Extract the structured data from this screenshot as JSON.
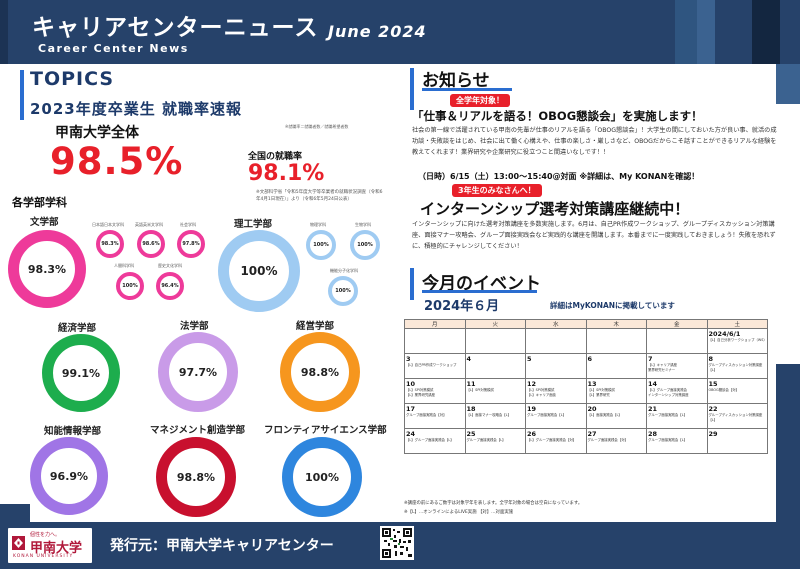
{
  "header": {
    "title": "キャリアセンターニュース",
    "subtitle": "Career Center News",
    "date": "June 2024"
  },
  "topics": {
    "label": "TOPICS",
    "year_title": "2023年度卒業生 就職率速報",
    "university_label": "甲南大学全体",
    "university_note": "※就職率＝就職者数／就職希望者数",
    "university_rate": "98.5%",
    "national_label": "全国の就職率",
    "national_rate": "98.1%",
    "national_note": "※文部科学省「令和5年度大学等卒業者の就職状況調査（令和6年4月1日現在）」より（令和6年5月24日公表）",
    "dept_heading": "各学部学科"
  },
  "faculties": [
    {
      "name": "文学部",
      "rate": "98.3%",
      "color": "#ee3a9a",
      "percent": 98.3
    },
    {
      "name": "理工学部",
      "rate": "100%",
      "color": "#9fcbf2",
      "percent": 100
    },
    {
      "name": "経済学部",
      "rate": "99.1%",
      "color": "#1dad4d",
      "percent": 99.1
    },
    {
      "name": "法学部",
      "rate": "97.7%",
      "color": "#c99be8",
      "percent": 97.7
    },
    {
      "name": "経営学部",
      "rate": "98.8%",
      "color": "#f6961e",
      "percent": 98.8
    },
    {
      "name": "知能情報学部",
      "rate": "96.9%",
      "color": "#a075e6",
      "percent": 96.9
    },
    {
      "name": "マネジメント創造学部",
      "rate": "98.8%",
      "color": "#c8102e",
      "percent": 98.8
    },
    {
      "name": "フロンティアサイエンス学部",
      "rate": "100%",
      "color": "#2e86de",
      "percent": 100
    }
  ],
  "lit_depts": [
    {
      "name": "日本語日本文学科",
      "rate": "98.3%"
    },
    {
      "name": "英語英米文学科",
      "rate": "98.6%"
    },
    {
      "name": "社会学科",
      "rate": "97.8%"
    },
    {
      "name": "人間科学科",
      "rate": "100%"
    },
    {
      "name": "歴史文化学科",
      "rate": "96.4%"
    }
  ],
  "sci_depts": [
    {
      "name": "物理学科",
      "rate": "100%"
    },
    {
      "name": "生物学科",
      "rate": "100%"
    },
    {
      "name": "機能分子化学科",
      "rate": "100%"
    }
  ],
  "news": {
    "heading": "お知らせ",
    "pill1": "全学年対象！",
    "headline1": "「仕事＆リアルを語る！OBOG懇談会」を実施します！",
    "body1": "社会の第一線で活躍されている甲南の先輩が仕事のリアルを語る「OBOG懇談会」！大学生の間にしておいた方が良い事、就活の成功談・失敗談をはじめ、社会に出て働く心構えや、仕事の楽しさ・厳しさなど、OBOGだからこそ話すことができるリアルな経験を教えてくれます！業界研究や企業研究に役立つこと間違いなしです！！",
    "datetime1": "（日時）6/15（土）13:00〜15:40@対面 ※詳細は、My KONANを確認！",
    "pill2": "3年生のみなさんへ！",
    "headline2": "インターンシップ選考対策講座継続中！",
    "body2": "インターンシップに向けた選考対策講座を多数実施します。6月は、自己PR作成ワークショップ、グループディスカッション対策講座、面接マナー攻略会、グループ面接実践会など実践的な講座を開講します。本番までに一度実践しておきましょう！失敗を恐れずに、積極的にチャレンジしてください！"
  },
  "events": {
    "heading": "今月のイベント",
    "month": "2024年６月",
    "month_note": "詳細はMyKONANに掲載しています",
    "weekdays": [
      "月",
      "火",
      "水",
      "木",
      "金",
      "土"
    ],
    "weeks": [
      [
        {
          "d": "",
          "e": []
        },
        {
          "d": "",
          "e": []
        },
        {
          "d": "",
          "e": []
        },
        {
          "d": "",
          "e": []
        },
        {
          "d": "",
          "e": []
        },
        {
          "d": "2024/6/1",
          "e": [
            "【L】自己分析ワークショップ（WS）"
          ]
        }
      ],
      [
        {
          "d": "3",
          "e": [
            "【L】自己PR作成ワークショップ"
          ]
        },
        {
          "d": "4",
          "e": []
        },
        {
          "d": "5",
          "e": []
        },
        {
          "d": "6",
          "e": []
        },
        {
          "d": "7",
          "e": [
            "【L】キャリア講座",
            "業界研究セミナー"
          ]
        },
        {
          "d": "8",
          "e": [
            "グループディスカッション対策講座【L】"
          ]
        }
      ],
      [
        {
          "d": "10",
          "e": [
            "【L】SPI対策模試",
            "【L】業界研究講座"
          ]
        },
        {
          "d": "11",
          "e": [
            "【L】SPI対策模試"
          ]
        },
        {
          "d": "12",
          "e": [
            "【L】SPI対策模試",
            "【L】キャリア面談"
          ]
        },
        {
          "d": "13",
          "e": [
            "【L】SPI対策模試",
            "【L】業界研究"
          ]
        },
        {
          "d": "14",
          "e": [
            "【L】グループ面接実践会",
            "インターンシップ対策講座"
          ]
        },
        {
          "d": "15",
          "e": [
            "OBOG懇談会【対】"
          ]
        }
      ],
      [
        {
          "d": "17",
          "e": [
            "グループ面接実践会【対】"
          ]
        },
        {
          "d": "18",
          "e": [
            "【L】面接マナー攻略会【L】"
          ]
        },
        {
          "d": "19",
          "e": [
            "グループ面接実践会【L】"
          ]
        },
        {
          "d": "20",
          "e": [
            "【L】面接実践会【L】"
          ]
        },
        {
          "d": "21",
          "e": [
            "グループ面接実践会【L】"
          ]
        },
        {
          "d": "22",
          "e": [
            "グループディスカッション対策講座【L】"
          ]
        }
      ],
      [
        {
          "d": "24",
          "e": [
            "【L】グループ面接実践会【L】"
          ]
        },
        {
          "d": "25",
          "e": [
            "グループ面接実践会【L】"
          ]
        },
        {
          "d": "26",
          "e": [
            "【L】グループ面接実践会【対】"
          ]
        },
        {
          "d": "27",
          "e": [
            "グループ面接実践会【対】"
          ]
        },
        {
          "d": "28",
          "e": [
            "グループ面接実践会【L】"
          ]
        },
        {
          "d": "29",
          "e": []
        }
      ]
    ],
    "note1": "※講座の前にあるご数字は対象学年を表します。全学年対象の場合は空白になっています。",
    "note2": "※【L】…オンラインによるLIVE実施 【対】…対面実施"
  },
  "footer": {
    "logo_caption": "個性を力へ。",
    "logo_name": "甲南大学",
    "logo_en": "KONAN UNIVERSITY",
    "publisher": "発行元：甲南大学キャリアセンター"
  },
  "colors": {
    "navy": "#26426a",
    "red": "#e8202a",
    "blue": "#2a6dd0"
  }
}
